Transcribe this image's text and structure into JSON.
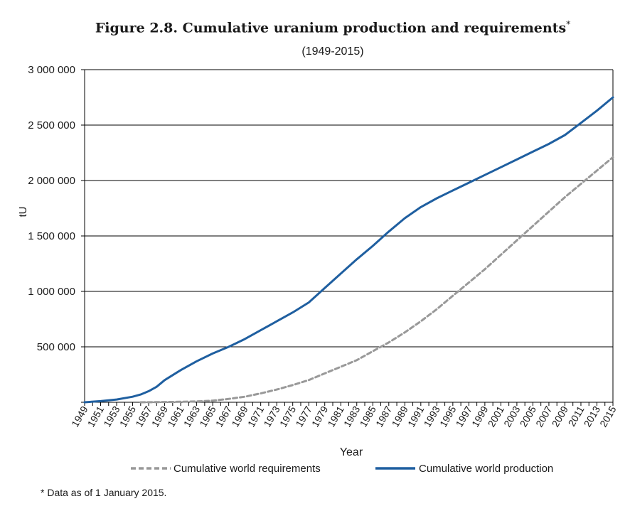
{
  "figure": {
    "title": "Figure 2.8. Cumulative uranium production and requirements",
    "title_marker": "*",
    "subtitle": "(1949-2015)",
    "footnote": "* Data as of 1 January 2015."
  },
  "chart_data": {
    "type": "line",
    "title": "Figure 2.8. Cumulative uranium production and requirements*",
    "subtitle": "(1949-2015)",
    "xlabel": "Year",
    "ylabel": "tU",
    "xlim": [
      1949,
      2015
    ],
    "ylim": [
      0,
      3000000
    ],
    "ytick_values": [
      0,
      500000,
      1000000,
      1500000,
      2000000,
      2500000,
      3000000
    ],
    "ytick_labels": [
      "",
      "500 000",
      "1 000 000",
      "1 500 000",
      "2 000 000",
      "2 500 000",
      "3 000 000"
    ],
    "xtick_labels": [
      "1949",
      "1951",
      "1953",
      "1955",
      "1957",
      "1959",
      "1961",
      "1963",
      "1965",
      "1967",
      "1969",
      "1971",
      "1973",
      "1975",
      "1977",
      "1979",
      "1981",
      "1983",
      "1985",
      "1987",
      "1989",
      "1991",
      "1993",
      "1995",
      "1997",
      "1999",
      "2001",
      "2003",
      "2005",
      "2007",
      "2009",
      "2011",
      "2013",
      "2015"
    ],
    "grid": "horizontal",
    "legend_position": "bottom",
    "series": [
      {
        "name": "Cumulative world requirements",
        "color": "#999999",
        "dash": true,
        "points": [
          [
            1956,
            0
          ],
          [
            1960,
            3000
          ],
          [
            1963,
            8000
          ],
          [
            1965,
            15000
          ],
          [
            1967,
            30000
          ],
          [
            1969,
            50000
          ],
          [
            1971,
            80000
          ],
          [
            1973,
            115000
          ],
          [
            1975,
            155000
          ],
          [
            1977,
            200000
          ],
          [
            1979,
            260000
          ],
          [
            1981,
            320000
          ],
          [
            1983,
            380000
          ],
          [
            1985,
            460000
          ],
          [
            1987,
            540000
          ],
          [
            1989,
            630000
          ],
          [
            1991,
            730000
          ],
          [
            1993,
            840000
          ],
          [
            1995,
            960000
          ],
          [
            1997,
            1080000
          ],
          [
            1999,
            1200000
          ],
          [
            2001,
            1330000
          ],
          [
            2003,
            1460000
          ],
          [
            2005,
            1590000
          ],
          [
            2007,
            1720000
          ],
          [
            2009,
            1850000
          ],
          [
            2011,
            1970000
          ],
          [
            2013,
            2090000
          ],
          [
            2015,
            2210000
          ]
        ]
      },
      {
        "name": "Cumulative world production",
        "color": "#1f5fa0",
        "dash": false,
        "points": [
          [
            1949,
            0
          ],
          [
            1951,
            10000
          ],
          [
            1953,
            25000
          ],
          [
            1955,
            50000
          ],
          [
            1956,
            70000
          ],
          [
            1957,
            100000
          ],
          [
            1958,
            140000
          ],
          [
            1959,
            200000
          ],
          [
            1961,
            290000
          ],
          [
            1963,
            370000
          ],
          [
            1965,
            440000
          ],
          [
            1967,
            500000
          ],
          [
            1969,
            570000
          ],
          [
            1971,
            650000
          ],
          [
            1973,
            730000
          ],
          [
            1975,
            810000
          ],
          [
            1977,
            900000
          ],
          [
            1979,
            1030000
          ],
          [
            1981,
            1160000
          ],
          [
            1983,
            1290000
          ],
          [
            1985,
            1410000
          ],
          [
            1987,
            1540000
          ],
          [
            1989,
            1660000
          ],
          [
            1991,
            1760000
          ],
          [
            1993,
            1840000
          ],
          [
            1995,
            1910000
          ],
          [
            1997,
            1980000
          ],
          [
            1999,
            2050000
          ],
          [
            2001,
            2120000
          ],
          [
            2003,
            2190000
          ],
          [
            2005,
            2260000
          ],
          [
            2007,
            2330000
          ],
          [
            2009,
            2410000
          ],
          [
            2011,
            2520000
          ],
          [
            2013,
            2630000
          ],
          [
            2015,
            2750000
          ]
        ]
      }
    ]
  }
}
